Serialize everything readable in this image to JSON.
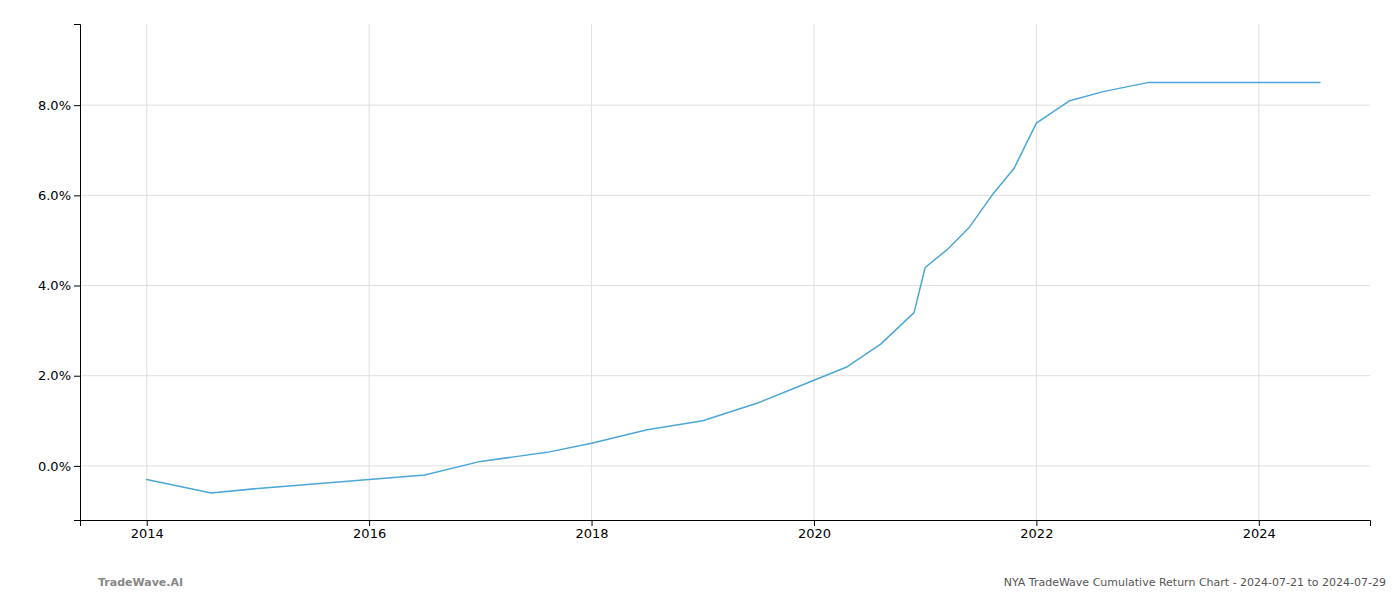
{
  "chart_data": {
    "type": "line",
    "x": [
      2014.0,
      2014.58,
      2015.0,
      2015.5,
      2016.0,
      2016.5,
      2017.0,
      2017.3,
      2017.6,
      2018.0,
      2018.5,
      2019.0,
      2019.5,
      2019.8,
      2020.0,
      2020.3,
      2020.6,
      2020.9,
      2021.0,
      2021.2,
      2021.4,
      2021.6,
      2021.8,
      2022.0,
      2022.3,
      2022.6,
      2023.0,
      2023.5,
      2024.0,
      2024.55
    ],
    "values": [
      -0.003,
      -0.006,
      -0.005,
      -0.004,
      -0.003,
      -0.002,
      0.001,
      0.002,
      0.003,
      0.005,
      0.008,
      0.01,
      0.014,
      0.017,
      0.019,
      0.022,
      0.027,
      0.034,
      0.044,
      0.048,
      0.053,
      0.06,
      0.066,
      0.076,
      0.081,
      0.083,
      0.085,
      0.085,
      0.085,
      0.085
    ],
    "color": "#4da6d8",
    "xlim": [
      2013.4,
      2025.0
    ],
    "ylim": [
      -0.012,
      0.098
    ],
    "xticks": [
      2014,
      2016,
      2018,
      2020,
      2022,
      2024
    ],
    "yticks": [
      {
        "value": 0.0,
        "label": "0.0%"
      },
      {
        "value": 0.02,
        "label": "2.0%"
      },
      {
        "value": 0.04,
        "label": "4.0%"
      },
      {
        "value": 0.06,
        "label": "6.0%"
      },
      {
        "value": 0.08,
        "label": "8.0%"
      }
    ],
    "grid": true,
    "annotations": [
      "TradeWave.AI",
      "NYA TradeWave Cumulative Return Chart - 2024-07-21 to 2024-07-29"
    ]
  }
}
